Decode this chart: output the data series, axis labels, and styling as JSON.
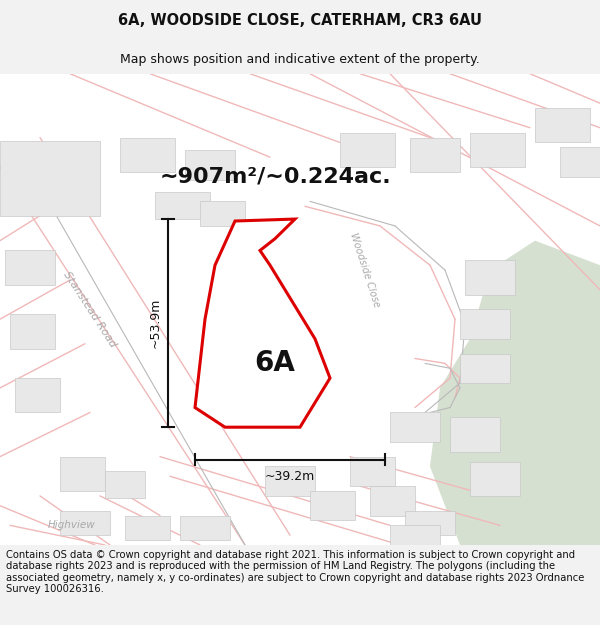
{
  "title": "6A, WOODSIDE CLOSE, CATERHAM, CR3 6AU",
  "subtitle": "Map shows position and indicative extent of the property.",
  "footer": "Contains OS data © Crown copyright and database right 2021. This information is subject to Crown copyright and database rights 2023 and is reproduced with the permission of HM Land Registry. The polygons (including the associated geometry, namely x, y co-ordinates) are subject to Crown copyright and database rights 2023 Ordnance Survey 100026316.",
  "area_label": "~907m²/~0.224ac.",
  "plot_label": "6A",
  "dim_width": "~39.2m",
  "dim_height": "~53.9m",
  "road_label_stanstead": "Stanstead Road",
  "road_label_woodside": "Woodside Close",
  "road_label_highview": "Highview",
  "bg_color": "#f2f2f2",
  "map_bg": "#ffffff",
  "plot_edge_color": "#dd0000",
  "plot_fill_color": "#ffffff",
  "road_line_color": "#f0b8b8",
  "road_outline_color": "#d0d0d0",
  "building_fill": "#e8e8e8",
  "building_edge": "#c8c8c8",
  "green_color": "#d5e0d0",
  "label_color": "#c8c8c8",
  "dim_color": "#111111",
  "title_fontsize": 10.5,
  "subtitle_fontsize": 9,
  "footer_fontsize": 7.2,
  "area_fontsize": 16,
  "plot_label_fontsize": 20,
  "dim_fontsize": 9,
  "road_fontsize": 8
}
